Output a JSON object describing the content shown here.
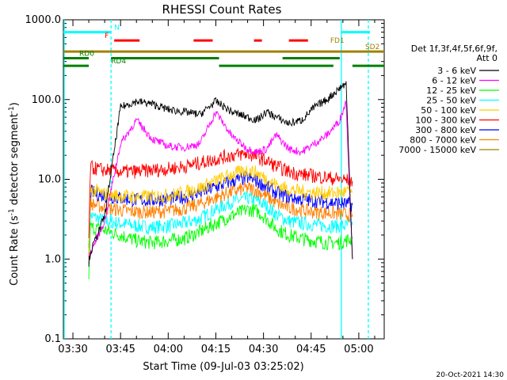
{
  "chart_data": {
    "type": "line",
    "title": "RHESSI Count Rates",
    "xlabel": "Start Time (09-Jul-03 03:25:02)",
    "ylabel_main": "Count Rate (s",
    "ylabel_sup": "-1",
    "ylabel_rest": " detector segment",
    "ylabel_sup2": "-1",
    "ylabel_end": ")",
    "yscale": "log",
    "ylim": [
      0.1,
      1000
    ],
    "xlim_minutes": [
      -3,
      98
    ],
    "x_ticks": [
      "03:30",
      "03:45",
      "04:00",
      "04:15",
      "04:30",
      "04:45",
      "05:00"
    ],
    "y_ticks": [
      "0.1",
      "1.0",
      "10.0",
      "100.0",
      "1000.0"
    ],
    "legend_header": [
      "Det 1f,3f,4f,5f,6f,9f,",
      "Att 0"
    ],
    "series": [
      {
        "name": "3 - 6 keV",
        "color": "#000000",
        "values": [
          0.9,
          1.2,
          3.5,
          80,
          95,
          88,
          75,
          70,
          65,
          95,
          70,
          60,
          55,
          70,
          60,
          50,
          55,
          80,
          100,
          140,
          160,
          1.0
        ]
      },
      {
        "name": "6 - 12 keV",
        "color": "#ff00ff",
        "values": [
          0.9,
          1.2,
          3.0,
          28,
          55,
          32,
          26,
          25,
          28,
          70,
          35,
          24,
          22,
          24,
          36,
          24,
          22,
          28,
          36,
          55,
          95,
          1.0
        ]
      },
      {
        "name": "12 - 25 keV",
        "color": "#00ff00",
        "values": [
          0.6,
          2.5,
          2.3,
          2.0,
          1.7,
          1.6,
          1.7,
          1.8,
          2.2,
          2.8,
          3.5,
          4.2,
          4.0,
          3.2,
          2.4,
          2.0,
          1.8,
          1.7,
          1.6,
          1.6,
          1.7,
          1.8
        ]
      },
      {
        "name": "25 - 50 keV",
        "color": "#00ffff",
        "values": [
          1.1,
          3.5,
          3.0,
          2.8,
          2.6,
          2.5,
          2.6,
          2.8,
          3.2,
          4.2,
          5.2,
          5.8,
          5.4,
          4.6,
          3.6,
          3.0,
          2.8,
          2.7,
          2.6,
          2.6,
          2.6,
          2.7
        ]
      },
      {
        "name": "50 - 100 keV",
        "color": "#ffcc00",
        "values": [
          1.2,
          7.5,
          6.5,
          6.2,
          6.0,
          6.1,
          6.3,
          6.8,
          7.8,
          9.5,
          11.5,
          13.0,
          12.0,
          10.0,
          8.5,
          7.5,
          7.0,
          6.8,
          6.7,
          6.8,
          7.0,
          7.0
        ]
      },
      {
        "name": "100 - 300 keV",
        "color": "#ff0000",
        "values": [
          1.5,
          14,
          13,
          12.5,
          12.5,
          13,
          13.5,
          14.5,
          16,
          18,
          20,
          21,
          19,
          17,
          14.5,
          12.5,
          11.5,
          11,
          10.5,
          10,
          9.8,
          9.5
        ]
      },
      {
        "name": "300 - 800 keV",
        "color": "#0000ff",
        "values": [
          1.3,
          7.0,
          6.2,
          5.8,
          5.5,
          5.5,
          5.7,
          6.0,
          6.8,
          8.0,
          9.5,
          10.5,
          9.5,
          8.0,
          6.8,
          6.0,
          5.6,
          5.4,
          5.2,
          5.0,
          4.9,
          4.8
        ]
      },
      {
        "name": "800 - 7000 keV",
        "color": "#ff8000",
        "values": [
          1.2,
          5.0,
          4.4,
          4.1,
          3.9,
          3.9,
          4.0,
          4.3,
          4.9,
          5.9,
          7.0,
          7.8,
          7.2,
          6.1,
          5.0,
          4.4,
          4.1,
          3.9,
          3.8,
          3.7,
          3.6,
          3.6
        ]
      },
      {
        "name": "7000 - 15000 keV",
        "color": "#a08000",
        "values": []
      }
    ],
    "x_series_minutes": [
      5,
      5.5,
      10,
      15,
      20,
      25,
      30,
      35,
      40,
      45,
      50,
      55,
      58,
      61,
      64,
      68,
      72,
      76,
      80,
      84,
      86,
      88
    ],
    "vlines": [
      {
        "x": 12,
        "style": "dashed",
        "color": "#00ffff"
      },
      {
        "x": 84.5,
        "style": "solid",
        "color": "#00ffff"
      },
      {
        "x": 93,
        "style": "dashed",
        "color": "#00ffff"
      }
    ],
    "flags": [
      {
        "label": "N",
        "color": "#00ffff",
        "level": 700,
        "segments": [
          [
            -3,
            12
          ],
          [
            84.5,
            93.5
          ]
        ],
        "label_at": 13
      },
      {
        "label": "F",
        "color": "#ff0000",
        "level": 550,
        "segments": [
          [
            13,
            21
          ],
          [
            38,
            44
          ],
          [
            57,
            59.5
          ],
          [
            68,
            74
          ]
        ],
        "label_at": 10
      },
      {
        "label": "FD1",
        "color": "#a08000",
        "level": 480,
        "segments": [],
        "label_at": 81
      },
      {
        "label": "SD2",
        "color": "#a08000",
        "level": 400,
        "segments": [
          [
            -3,
            98
          ]
        ],
        "label_at": 92
      },
      {
        "label": "RD0",
        "color": "#008000",
        "level": 330,
        "segments": [
          [
            -3,
            5
          ],
          [
            12,
            46
          ],
          [
            66,
            84
          ]
        ],
        "label_at": 2
      },
      {
        "label": "RD4",
        "color": "#008000",
        "level": 265,
        "segments": [
          [
            -3,
            5
          ],
          [
            46,
            82
          ],
          [
            88,
            98
          ]
        ],
        "label_at": 12
      }
    ],
    "timestamp": "20-Oct-2021 14:30"
  }
}
